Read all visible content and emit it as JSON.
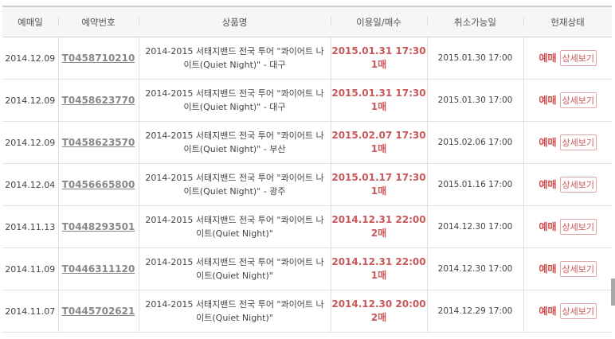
{
  "headers": [
    "예매일",
    "예약번호",
    "상품명",
    "이용일/매수",
    "취소가능일",
    "현재상태"
  ],
  "rows": [
    {
      "date": "2014.12.09",
      "id": "T0458710210",
      "product": "2014-2015 서태지밴드 전국 투어 \"콰이어트 나이트(Quiet Night)\" - 대구",
      "use_date": "2015.01.31 17:30",
      "qty": "1매",
      "cancel": "2015.01.30 17:00",
      "status": "예매",
      "detail": "상세보기"
    },
    {
      "date": "2014.12.09",
      "id": "T0458623770",
      "product": "2014-2015 서태지밴드 전국 투어 \"콰이어트 나이트(Quiet Night)\" - 대구",
      "use_date": "2015.01.31 17:30",
      "qty": "1매",
      "cancel": "2015.01.30 17:00",
      "status": "예매",
      "detail": "상세보기"
    },
    {
      "date": "2014.12.09",
      "id": "T0458623570",
      "product": "2014-2015 서태지밴드 전국 투어 \"콰이어트 나이트(Quiet Night)\" - 부산",
      "use_date": "2015.02.07 17:30",
      "qty": "1매",
      "cancel": "2015.02.06 17:00",
      "status": "예매",
      "detail": "상세보기"
    },
    {
      "date": "2014.12.04",
      "id": "T0456665800",
      "product": "2014-2015 서태지밴드 전국 투어 \"콰이어트 나이트(Quiet Night)\" - 광주",
      "use_date": "2015.01.17 17:30",
      "qty": "1매",
      "cancel": "2015.01.16 17:00",
      "status": "예매",
      "detail": "상세보기"
    },
    {
      "date": "2014.11.13",
      "id": "T0448293501",
      "product": "2014-2015 서태지밴드 전국 투어 \"콰이어트 나이트(Quiet Night)\"",
      "use_date": "2014.12.31 22:00",
      "qty": "2매",
      "cancel": "2014.12.30 17:00",
      "status": "예매",
      "detail": "상세보기"
    },
    {
      "date": "2014.11.09",
      "id": "T0446311120",
      "product": "2014-2015 서태지밴드 전국 투어 \"콰이어트 나이트(Quiet Night)\"",
      "use_date": "2014.12.31 22:00",
      "qty": "1매",
      "cancel": "2014.12.30 17:00",
      "status": "예매",
      "detail": "상세보기"
    },
    {
      "date": "2014.11.07",
      "id": "T0445702621",
      "product": "2014-2015 서태지밴드 전국 투어 \"콰이어트 나이트(Quiet Night)\"",
      "use_date": "2014.12.30 20:00",
      "qty": "2매",
      "cancel": "2014.12.29 17:00",
      "status": "예매",
      "detail": "상세보기"
    }
  ]
}
